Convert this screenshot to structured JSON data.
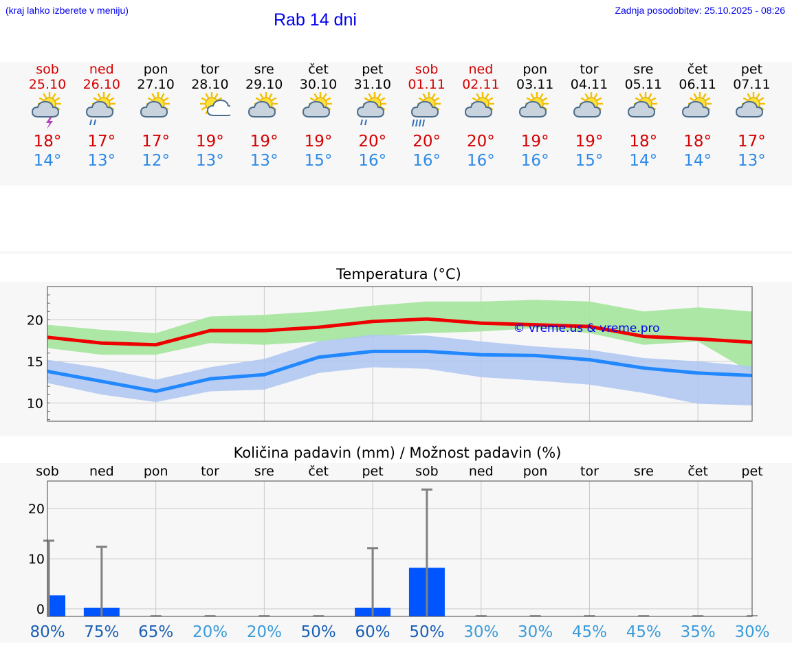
{
  "header": {
    "hint": "(kraj lahko izberete v meniju)",
    "title": "Rab 14 dni",
    "updated": "Zadnja posodobitev: 25.10.2025 - 08:26"
  },
  "days": [
    {
      "name": "sob",
      "date": "25.10",
      "weekend": true,
      "icon": "sun-cloud-thunder-icon",
      "max": "18°",
      "min": "14°"
    },
    {
      "name": "ned",
      "date": "26.10",
      "weekend": true,
      "icon": "sun-cloud-light-rain-icon",
      "max": "17°",
      "min": "13°"
    },
    {
      "name": "pon",
      "date": "27.10",
      "weekend": false,
      "icon": "sun-cloud-icon",
      "max": "17°",
      "min": "12°"
    },
    {
      "name": "tor",
      "date": "28.10",
      "weekend": false,
      "icon": "sun-white-cloud-icon",
      "max": "19°",
      "min": "13°"
    },
    {
      "name": "sre",
      "date": "29.10",
      "weekend": false,
      "icon": "sun-cloud-icon",
      "max": "19°",
      "min": "13°"
    },
    {
      "name": "čet",
      "date": "30.10",
      "weekend": false,
      "icon": "sun-cloud-icon",
      "max": "19°",
      "min": "15°"
    },
    {
      "name": "pet",
      "date": "31.10",
      "weekend": false,
      "icon": "sun-cloud-light-rain-icon",
      "max": "20°",
      "min": "16°"
    },
    {
      "name": "sob",
      "date": "01.11",
      "weekend": true,
      "icon": "sun-cloud-heavy-rain-icon",
      "max": "20°",
      "min": "16°"
    },
    {
      "name": "ned",
      "date": "02.11",
      "weekend": true,
      "icon": "sun-cloud-icon",
      "max": "20°",
      "min": "16°"
    },
    {
      "name": "pon",
      "date": "03.11",
      "weekend": false,
      "icon": "sun-cloud-icon",
      "max": "19°",
      "min": "16°"
    },
    {
      "name": "tor",
      "date": "04.11",
      "weekend": false,
      "icon": "sun-cloud-icon",
      "max": "19°",
      "min": "15°"
    },
    {
      "name": "sre",
      "date": "05.11",
      "weekend": false,
      "icon": "sun-cloud-icon",
      "max": "18°",
      "min": "14°"
    },
    {
      "name": "čet",
      "date": "06.11",
      "weekend": false,
      "icon": "sun-cloud-icon",
      "max": "18°",
      "min": "14°"
    },
    {
      "name": "pet",
      "date": "07.11",
      "weekend": false,
      "icon": "sun-cloud-icon",
      "max": "17°",
      "min": "13°"
    }
  ],
  "colors": {
    "max": "#ee0000",
    "min": "#2288ff",
    "max_band": "#a8e6a0",
    "min_band": "#aec6f2",
    "overlap_band": "#7ec8a8",
    "rain_bar": "#0055ff",
    "whisker": "#808080",
    "prob_high": "#1a5fb4",
    "prob_low": "#3a9bd9",
    "link": "#0000ee"
  },
  "chart_data": [
    {
      "type": "line",
      "title": "Temperatura (°C)",
      "watermark": "© vreme.us & vreme.pro",
      "ylim": [
        7.8,
        24
      ],
      "yticks": [
        10,
        15,
        20
      ],
      "grid": true,
      "x": [
        0,
        1,
        2,
        3,
        4,
        5,
        6,
        7,
        8,
        9,
        10,
        11,
        12,
        13
      ],
      "series": [
        {
          "name": "max",
          "values": [
            17.9,
            17.2,
            17.0,
            18.7,
            18.7,
            19.1,
            19.8,
            20.1,
            19.6,
            19.4,
            19.2,
            18.0,
            17.7,
            17.3
          ]
        },
        {
          "name": "min",
          "values": [
            13.8,
            12.6,
            11.4,
            12.9,
            13.4,
            15.5,
            16.2,
            16.2,
            15.8,
            15.7,
            15.2,
            14.2,
            13.6,
            13.3
          ]
        }
      ],
      "bands": [
        {
          "name": "max",
          "upper": [
            19.4,
            18.8,
            18.4,
            20.4,
            20.6,
            21.0,
            21.7,
            22.2,
            22.2,
            22.4,
            22.2,
            21.0,
            21.5,
            21.0
          ],
          "lower": [
            16.6,
            15.8,
            15.8,
            17.2,
            17.0,
            17.4,
            18.0,
            18.4,
            18.6,
            19.0,
            18.4,
            17.0,
            17.4,
            13.6
          ]
        },
        {
          "name": "min",
          "upper": [
            15.2,
            14.2,
            12.8,
            14.3,
            15.3,
            17.4,
            18.2,
            18.1,
            17.4,
            16.8,
            16.4,
            15.4,
            15.0,
            14.4
          ],
          "lower": [
            12.4,
            11.0,
            10.1,
            11.4,
            11.6,
            13.6,
            14.3,
            14.1,
            13.1,
            12.7,
            12.2,
            11.2,
            9.9,
            9.7
          ]
        }
      ]
    },
    {
      "type": "bar",
      "title": "Količina padavin (mm) / Možnost padavin (%)",
      "categories": [
        "sob",
        "ned",
        "pon",
        "tor",
        "sre",
        "čet",
        "pet",
        "sob",
        "ned",
        "pon",
        "tor",
        "sre",
        "čet",
        "pet"
      ],
      "ylim": [
        -1.5,
        25.5
      ],
      "yticks": [
        0,
        10,
        20
      ],
      "grid": true,
      "values": [
        2.7,
        0.2,
        0,
        0,
        0,
        0,
        0.2,
        8.2,
        0,
        0,
        0,
        0,
        0,
        0
      ],
      "error_max": [
        13.6,
        12.4,
        0,
        0,
        0,
        0,
        12.1,
        23.8,
        0,
        0,
        0,
        0,
        0,
        0
      ],
      "probability": [
        "80%",
        "75%",
        "65%",
        "20%",
        "20%",
        "50%",
        "60%",
        "50%",
        "30%",
        "30%",
        "45%",
        "45%",
        "35%",
        "30%"
      ]
    }
  ]
}
